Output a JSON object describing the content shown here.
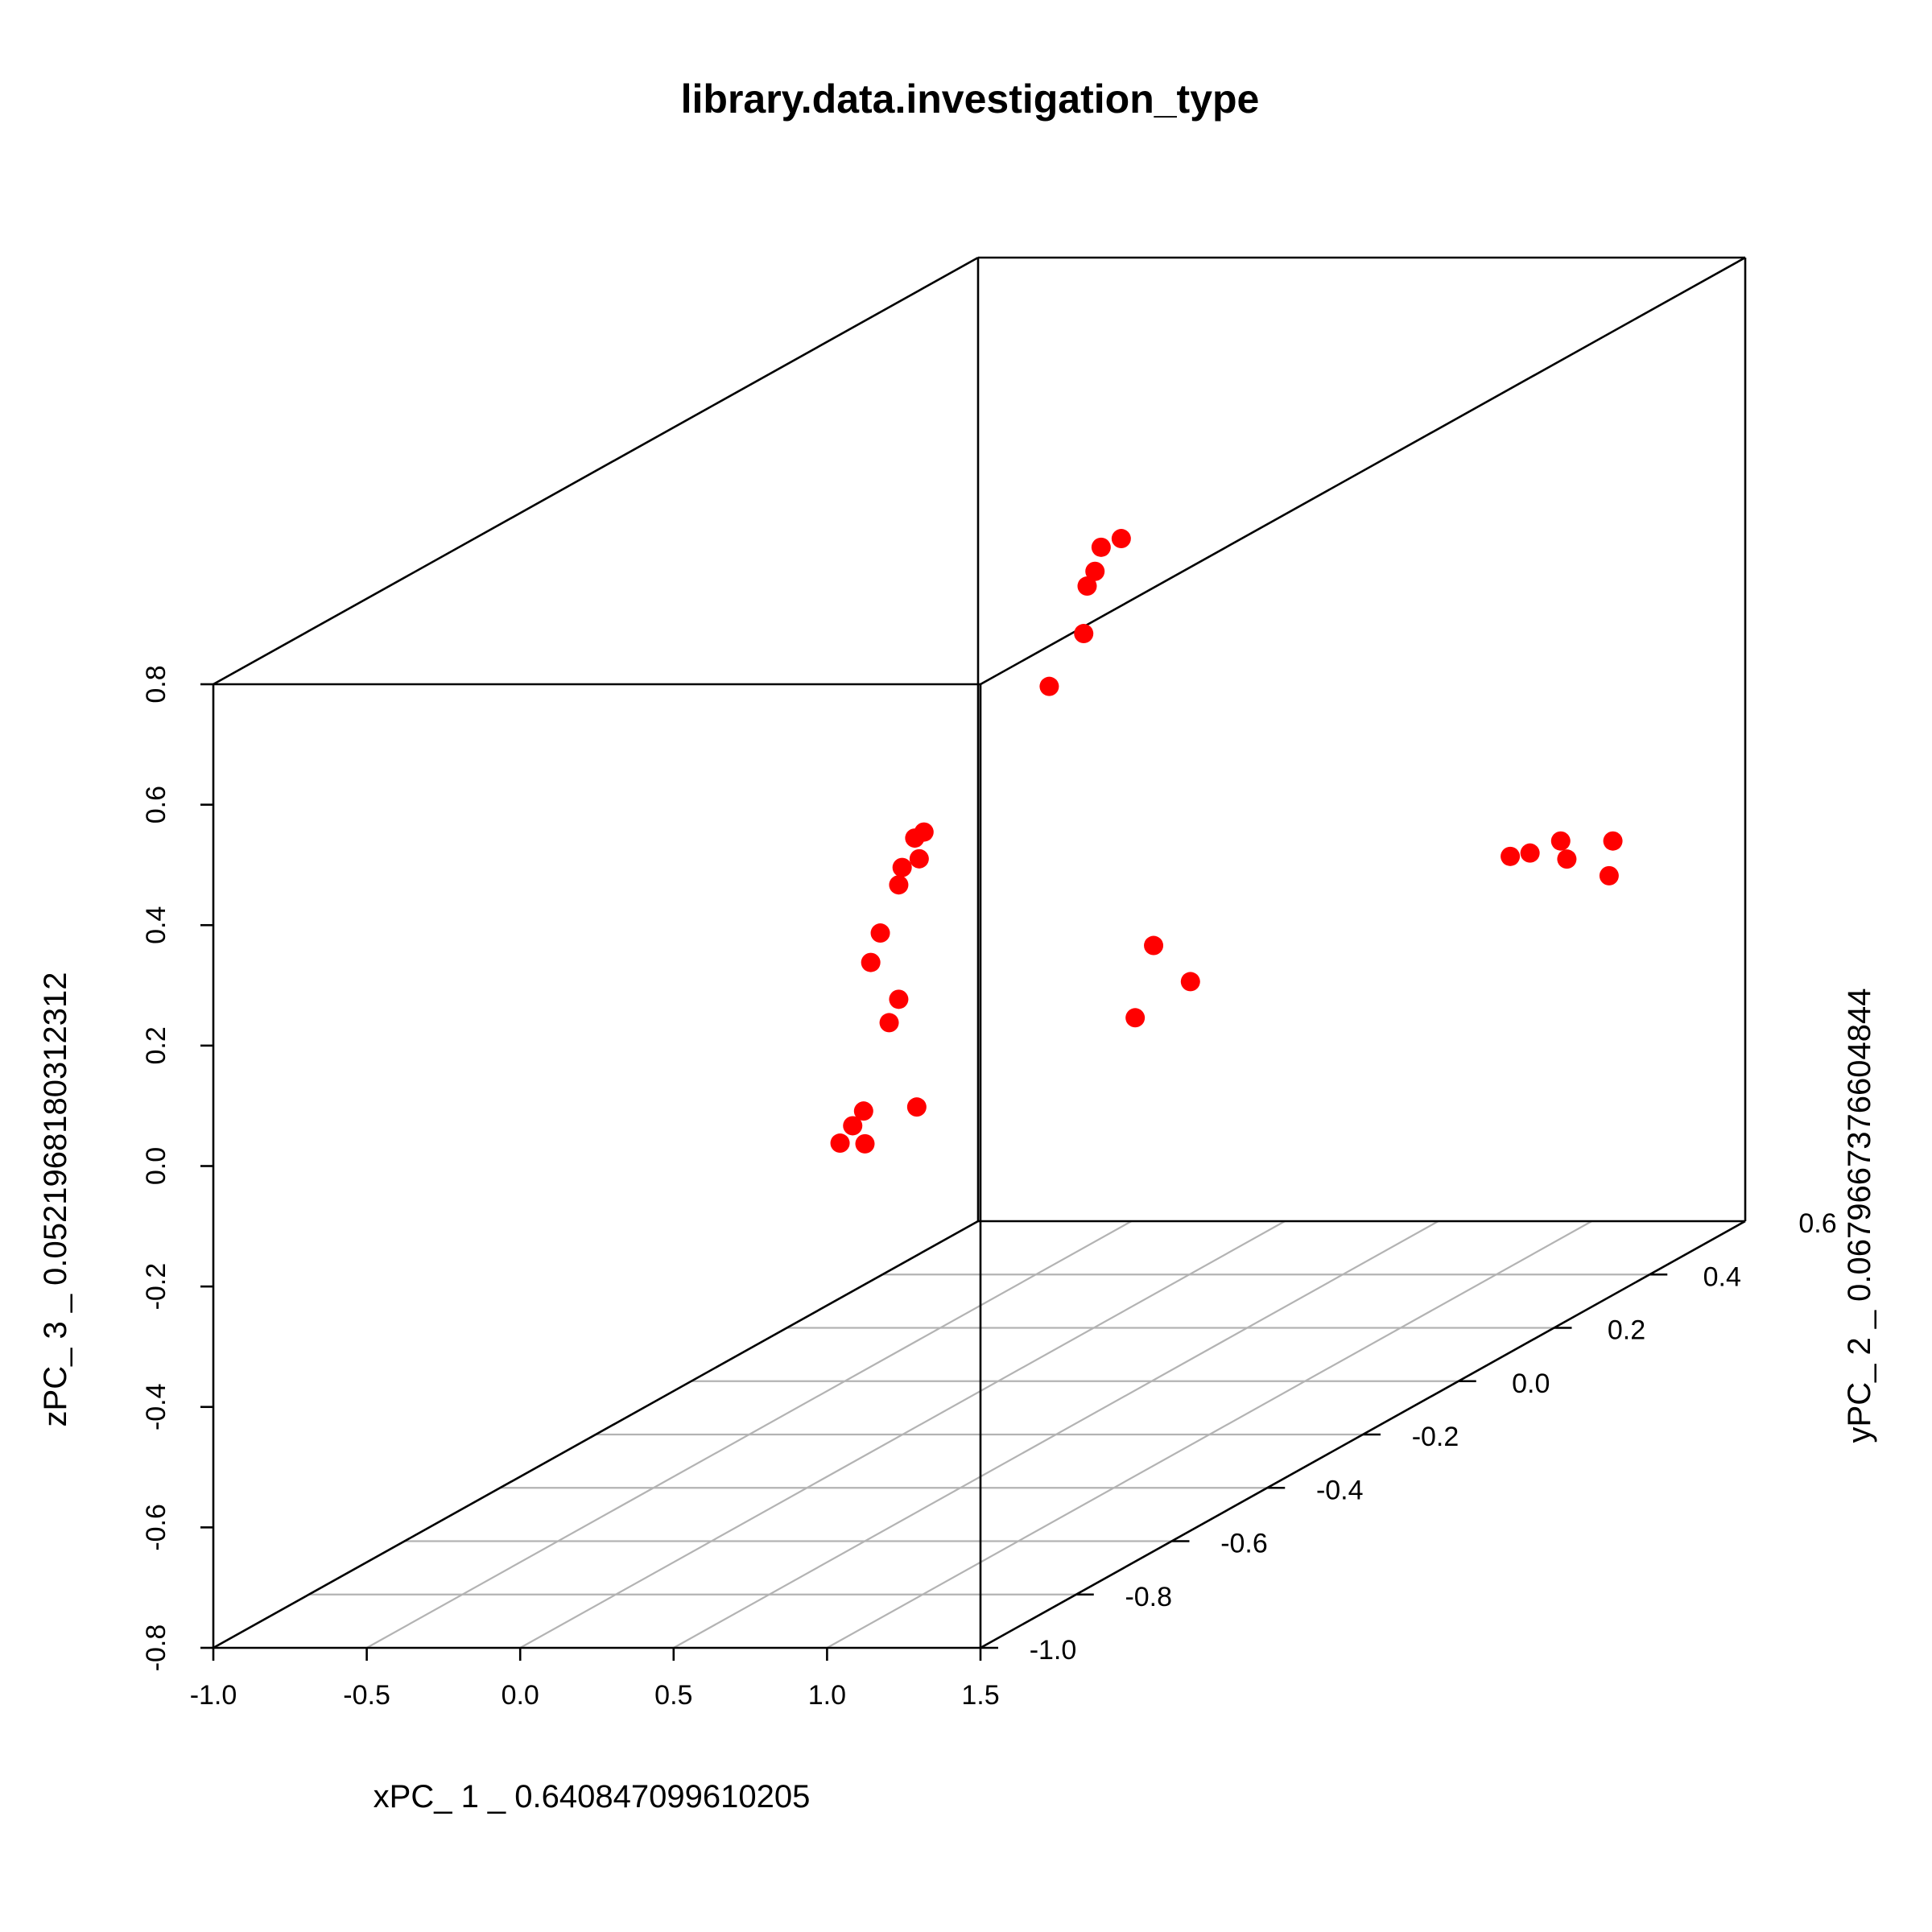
{
  "chart_data": {
    "type": "scatter",
    "title": "library.data.investigation_type",
    "xlabel": "xPC_ 1 _ 0.640847099610205",
    "ylabel": "yPC_ 2 _ 0.0679667376604844",
    "zlabel": "zPC_ 3 _ 0.0521968180312312",
    "xlim": [
      -1.0,
      1.5
    ],
    "ylim": [
      -1.0,
      0.6
    ],
    "zlim": [
      -0.8,
      0.8
    ],
    "x_ticks": [
      "-1.0",
      "-0.5",
      "0.0",
      "0.5",
      "1.0",
      "1.5"
    ],
    "y_ticks": [
      "-1.0",
      "-0.8",
      "-0.6",
      "-0.4",
      "-0.2",
      "0.0",
      "0.2",
      "0.4",
      "0.6"
    ],
    "z_ticks": [
      "-0.8",
      "-0.6",
      "-0.4",
      "-0.2",
      "0.0",
      "0.2",
      "0.4",
      "0.6",
      "0.8"
    ],
    "grid": "xy-floor",
    "point_color": "#ff0000",
    "points": [
      {
        "x": -0.44,
        "y": 0.54,
        "z": 0.36
      },
      {
        "x": -0.49,
        "y": 0.53,
        "z": 0.35
      },
      {
        "x": -0.51,
        "y": 0.53,
        "z": 0.31
      },
      {
        "x": -0.52,
        "y": 0.52,
        "z": 0.29
      },
      {
        "x": -0.5,
        "y": 0.5,
        "z": 0.22
      },
      {
        "x": -0.55,
        "y": 0.46,
        "z": 0.15
      },
      {
        "x": -0.6,
        "y": 0.23,
        "z": 0.01
      },
      {
        "x": -0.63,
        "y": 0.23,
        "z": 0.0
      },
      {
        "x": -0.64,
        "y": 0.21,
        "z": -0.04
      },
      {
        "x": -0.6,
        "y": 0.22,
        "z": -0.03
      },
      {
        "x": -0.62,
        "y": 0.19,
        "z": -0.06
      },
      {
        "x": -0.68,
        "y": 0.19,
        "z": -0.14
      },
      {
        "x": -0.68,
        "y": 0.17,
        "z": -0.18
      },
      {
        "x": -0.62,
        "y": 0.19,
        "z": -0.25
      },
      {
        "x": -0.62,
        "y": 0.17,
        "z": -0.28
      },
      {
        "x": -0.53,
        "y": 0.17,
        "z": -0.42
      },
      {
        "x": -0.75,
        "y": 0.2,
        "z": -0.44
      },
      {
        "x": -0.77,
        "y": 0.19,
        "z": -0.46
      },
      {
        "x": -0.78,
        "y": 0.17,
        "z": -0.48
      },
      {
        "x": -0.73,
        "y": 0.19,
        "z": -0.49
      },
      {
        "x": 0.89,
        "y": 0.5,
        "z": -0.15
      },
      {
        "x": 0.97,
        "y": 0.49,
        "z": -0.14
      },
      {
        "x": 1.07,
        "y": 0.49,
        "z": -0.12
      },
      {
        "x": 1.09,
        "y": 0.49,
        "z": -0.15
      },
      {
        "x": 1.24,
        "y": 0.49,
        "z": -0.12
      },
      {
        "x": 1.29,
        "y": 0.45,
        "z": -0.16
      },
      {
        "x": 0.6,
        "y": -0.06,
        "z": -0.05
      },
      {
        "x": 0.72,
        "y": -0.06,
        "z": -0.11
      },
      {
        "x": 0.54,
        "y": -0.06,
        "z": -0.17
      }
    ]
  }
}
